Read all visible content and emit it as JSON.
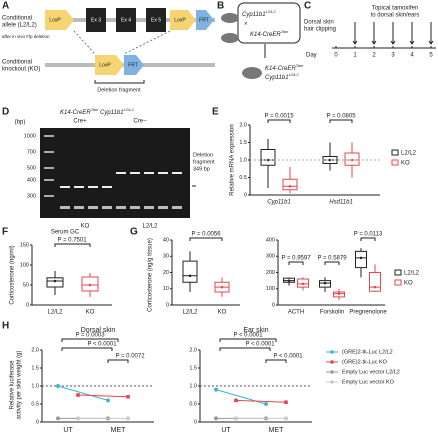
{
  "panel_A": {
    "label": "A",
    "allele_title": [
      "Conditional",
      "allele (L2/L2)"
    ],
    "allele_note": "after in vivo Flp deletion",
    "elements": [
      "LoxP",
      "Ex 3",
      "Ex 4",
      "Ex 5",
      "LoxP",
      "FRT"
    ],
    "ko_title": [
      "Conditional",
      "knockout (KO)"
    ],
    "ko_elements": [
      "LoxP",
      "FRT"
    ],
    "deletion": "Deletion fragment"
  },
  "panel_B": {
    "label": "B",
    "parent1": [
      "Cyp11b1",
      "L2/L2"
    ],
    "cross": "×",
    "parent2": [
      "K14-CreER",
      "Tam"
    ],
    "offspring1": [
      "K14-CreER",
      "Tam"
    ],
    "offspring2": [
      "Cyp11b1",
      "L2/L2"
    ]
  },
  "panel_C": {
    "label": "C",
    "clip": [
      "Dorsal skin",
      "hair clipping"
    ],
    "treat": [
      "Topical tamoxifen",
      "to dorsal skin/ears"
    ],
    "day_label": "Day",
    "days": [
      0,
      1,
      2,
      3,
      4,
      5
    ]
  },
  "panel_D": {
    "label": "D",
    "genotype": [
      "K14-CreER",
      "Tam",
      " Cyp11b1",
      "L2/L2"
    ],
    "cre_pos": "Cre+",
    "cre_neg": "Cre−",
    "bp": "(bp)",
    "ladder": [
      1000,
      700,
      500,
      400,
      300
    ],
    "deletion": [
      "Deletion",
      "fragment",
      "349 bp"
    ],
    "groups": [
      "KO",
      "L2/L2"
    ]
  },
  "panel_E": {
    "label": "E",
    "ylabel": "Relative mRNA expression",
    "ylim": [
      0,
      2
    ],
    "yticks": [
      0,
      0.5,
      {
        "value": 1,
        "label": "1.0"
      },
      1.5,
      {
        "value": 2,
        "label": "2.0"
      }
    ],
    "categories": [
      "Cyp11b1",
      "Hsd11b1"
    ],
    "pvalues": [
      "P = 0.0015",
      "P = 0.0805"
    ],
    "legend": [
      "L2/L2",
      "KO"
    ],
    "colors": [
      "#222222",
      "#e8454f"
    ],
    "boxes": [
      [
        0.2,
        0.85,
        1.0,
        1.3,
        1.6
      ],
      [
        0.05,
        0.15,
        0.25,
        0.45,
        0.8
      ],
      [
        0.7,
        0.9,
        1.0,
        1.1,
        1.5
      ],
      [
        0.5,
        0.85,
        1.0,
        1.2,
        1.5
      ]
    ]
  },
  "panel_F": {
    "label": "F",
    "title": "Serum GC",
    "ylabel": "Corticosterone (ng/ml)",
    "ylim": [
      0,
      150
    ],
    "yticks": [
      0,
      50,
      100,
      150
    ],
    "pvalue": "P = 0.7501",
    "categories": [
      "L2/L2",
      "KO"
    ],
    "boxes": [
      [
        25,
        45,
        60,
        68,
        85
      ],
      [
        20,
        35,
        50,
        70,
        80
      ]
    ]
  },
  "panel_G": {
    "label": "G",
    "ylabel": "Corticosterone (ng/g tissue)",
    "left": {
      "ylim": [
        0,
        40
      ],
      "yticks": [
        0,
        10,
        20,
        30,
        40
      ],
      "pvalue": "P = 0.0056",
      "categories": [
        "L2/L2",
        "KO"
      ],
      "boxes": [
        [
          8,
          14,
          18,
          27,
          33
        ],
        [
          5,
          8,
          11,
          14,
          17
        ]
      ]
    },
    "right": {
      "ylim": [
        0,
        400
      ],
      "yticks": [
        0,
        100,
        200,
        300,
        400
      ],
      "pvalues": [
        "P = 0.9597",
        "P = 0.5879",
        "P = 0.0113"
      ],
      "categories": [
        "ACTH",
        "Forskolin",
        "Pregnenolone"
      ],
      "boxes": [
        [
          120,
          140,
          150,
          165,
          170
        ],
        [
          90,
          110,
          130,
          160,
          170
        ],
        [
          80,
          110,
          135,
          150,
          170
        ],
        [
          30,
          50,
          70,
          80,
          100
        ],
        [
          170,
          230,
          290,
          330,
          350
        ],
        [
          80,
          85,
          110,
          200,
          250
        ]
      ]
    },
    "legend": [
      "L2/L2",
      "KO"
    ]
  },
  "panel_H": {
    "label": "H",
    "ylabel": [
      "Relative luciferase",
      "activity per skin weight (g)"
    ],
    "ylim": [
      0,
      2
    ],
    "yticks": [
      0,
      0.5,
      {
        "value": 1,
        "label": "1.0"
      },
      1.5,
      {
        "value": 2,
        "label": "2.0"
      }
    ],
    "refline": 1,
    "categories": [
      "UT",
      "MET"
    ],
    "titles": [
      "Dorsal skin",
      "Ear skin"
    ],
    "pvalues": [
      [
        "P = 0.0003",
        "P < 0.0001",
        "P = 0.0072"
      ],
      [
        "P < 0.0001",
        "P < 0.0001",
        "P < 0.0001"
      ]
    ],
    "series": [
      {
        "name": "(GRE)2-tk-Luc L2/L2",
        "color": "#3ab7cf",
        "dorsal": [
          1.0,
          0.6
        ],
        "ear": [
          0.9,
          0.5
        ]
      },
      {
        "name": "(GRE)2-tk-Luc KO",
        "color": "#e8454f",
        "dorsal": [
          0.75,
          0.7
        ],
        "ear": [
          0.6,
          0.55
        ]
      },
      {
        "name": "Empty Luc vector L2/L2",
        "color": "#9a9a9a",
        "dorsal": [
          0.1,
          0.1
        ],
        "ear": [
          0.1,
          0.1
        ]
      },
      {
        "name": "Empty Luc vector KO",
        "color": "#c8c8c8",
        "dorsal": [
          0.1,
          0.1
        ],
        "ear": [
          0.1,
          0.1
        ]
      }
    ]
  }
}
